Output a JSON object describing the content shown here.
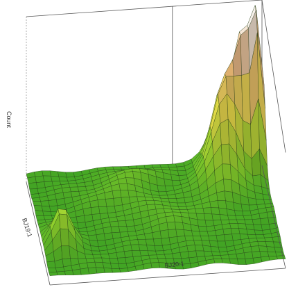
{
  "chart_data": {
    "type": "surface3d",
    "axis_labels": {
      "x": "BJ20:1",
      "y": "BJ19:1",
      "z": "Count"
    },
    "grid": false,
    "colors": {
      "low": "#2e9a22",
      "mid": "#8fd02c",
      "high": "#f0e24a",
      "peak": "#e9b27a",
      "top": "#f6f0ea",
      "mesh": "#1f3a12",
      "box": "#555555",
      "box_hidden": "#9a9a9a"
    },
    "surface": {
      "nx": 30,
      "ny": 22,
      "base_level": 0.05,
      "bumps": [
        {
          "x": 0.97,
          "y": 0.08,
          "height": 1.0,
          "sx": 0.025,
          "sy": 0.08
        },
        {
          "x": 0.91,
          "y": 0.06,
          "height": 0.62,
          "sx": 0.03,
          "sy": 0.07
        },
        {
          "x": 0.84,
          "y": 0.1,
          "height": 0.45,
          "sx": 0.05,
          "sy": 0.1
        },
        {
          "x": 0.8,
          "y": 0.22,
          "height": 0.22,
          "sx": 0.06,
          "sy": 0.12
        },
        {
          "x": 0.08,
          "y": 0.7,
          "height": 0.22,
          "sx": 0.04,
          "sy": 0.08
        },
        {
          "x": 0.35,
          "y": 0.3,
          "height": 0.06,
          "sx": 0.1,
          "sy": 0.1
        },
        {
          "x": 0.55,
          "y": 0.55,
          "height": 0.05,
          "sx": 0.12,
          "sy": 0.12
        },
        {
          "x": 0.45,
          "y": 0.15,
          "height": 0.07,
          "sx": 0.08,
          "sy": 0.06
        }
      ]
    }
  }
}
